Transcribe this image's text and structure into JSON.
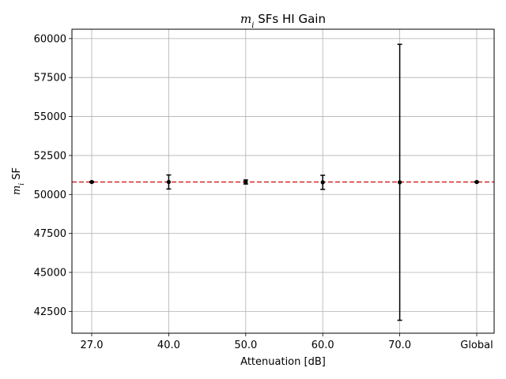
{
  "chart_data": {
    "type": "scatter",
    "title": {
      "symbol": "m",
      "subscript": "i",
      "rest": " SFs HI Gain"
    },
    "xlabel": "Attenuation [dB]",
    "ylabel": {
      "symbol": "m",
      "subscript": "i",
      "rest": " SF"
    },
    "categories": [
      "27.0",
      "40.0",
      "50.0",
      "60.0",
      "70.0",
      "Global"
    ],
    "values": [
      50800,
      50800,
      50800,
      50780,
      50780,
      50800
    ],
    "errors": [
      30,
      450,
      130,
      450,
      8850,
      20
    ],
    "reference_line": {
      "value": 50800,
      "color": "#d62728",
      "style": "dashed"
    },
    "yticks": [
      42500,
      45000,
      47500,
      50000,
      52500,
      55000,
      57500,
      60000
    ],
    "ylim": [
      41100,
      60600
    ],
    "grid": true,
    "marker_color": "#000000"
  }
}
